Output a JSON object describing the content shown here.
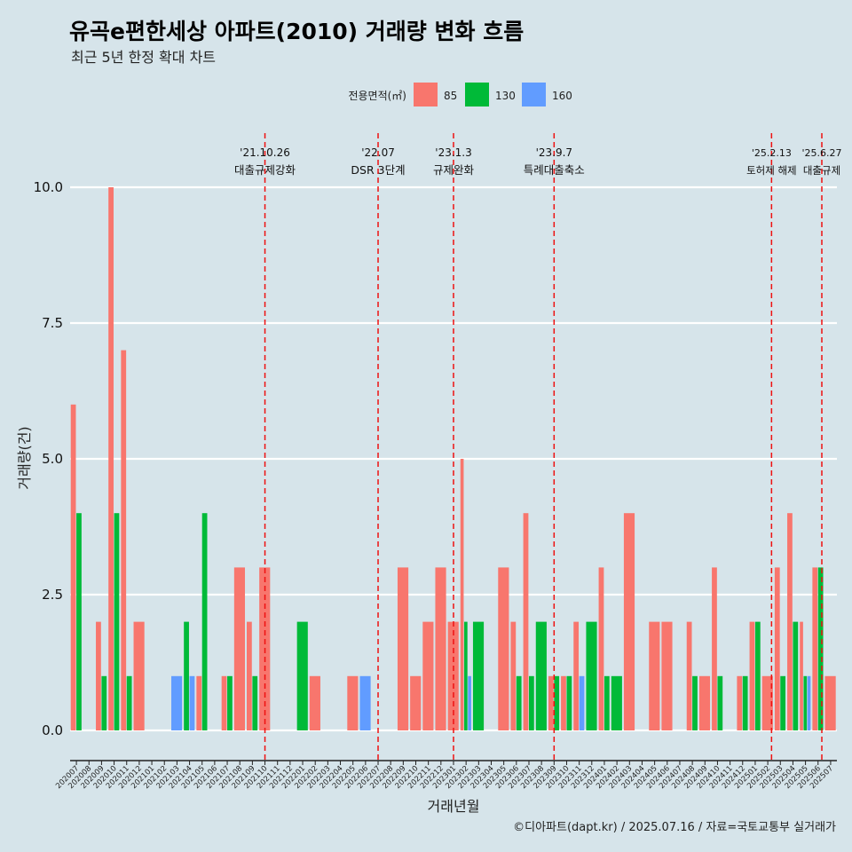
{
  "chart_data": {
    "type": "bar",
    "title": "유곡e편한세상 아파트(2010) 거래량 변화 흐름",
    "subtitle": "최근 5년 한정 확대 차트",
    "xlabel": "거래년월",
    "ylabel": "거래량(건)",
    "caption": "©디아파트(dapt.kr) / 2025.07.16 / 자료=국토교통부 실거래가",
    "legend": {
      "title": "전용면적(㎡)",
      "position": "top"
    },
    "ylim": [
      0,
      10.5
    ],
    "yticks": [
      "0.0",
      "2.5",
      "5.0",
      "7.5",
      "10.0"
    ],
    "ytick_values": [
      0,
      2.5,
      5,
      7.5,
      10
    ],
    "grid": true,
    "categories": [
      "202007",
      "202008",
      "202009",
      "202010",
      "202011",
      "202012",
      "202101",
      "202102",
      "202103",
      "202104",
      "202105",
      "202106",
      "202107",
      "202108",
      "202109",
      "202110",
      "202111",
      "202112",
      "202201",
      "202202",
      "202203",
      "202204",
      "202205",
      "202206",
      "202207",
      "202208",
      "202209",
      "202210",
      "202211",
      "202212",
      "202301",
      "202302",
      "202303",
      "202304",
      "202305",
      "202306",
      "202307",
      "202308",
      "202309",
      "202310",
      "202311",
      "202312",
      "202401",
      "202402",
      "202403",
      "202404",
      "202405",
      "202406",
      "202407",
      "202408",
      "202409",
      "202410",
      "202411",
      "202412",
      "202501",
      "202502",
      "202503",
      "202504",
      "202505",
      "202506",
      "202507"
    ],
    "series": [
      {
        "name": "85",
        "color": "#f8766d",
        "values": [
          6,
          0,
          2,
          10,
          7,
          2,
          0,
          0,
          0,
          0,
          1,
          0,
          1,
          3,
          2,
          3,
          0,
          0,
          0,
          1,
          0,
          0,
          1,
          0,
          0,
          0,
          3,
          1,
          2,
          3,
          2,
          5,
          0,
          0,
          3,
          2,
          4,
          0,
          1,
          1,
          2,
          0,
          3,
          0,
          4,
          0,
          2,
          2,
          0,
          2,
          1,
          3,
          0,
          1,
          2,
          1,
          3,
          4,
          2,
          3,
          1
        ]
      },
      {
        "name": "130",
        "color": "#00ba38",
        "values": [
          4,
          0,
          1,
          4,
          1,
          0,
          0,
          0,
          0,
          2,
          4,
          0,
          1,
          0,
          1,
          0,
          0,
          0,
          2,
          0,
          0,
          0,
          0,
          0,
          0,
          0,
          0,
          0,
          0,
          0,
          0,
          2,
          2,
          0,
          0,
          1,
          1,
          2,
          1,
          1,
          0,
          2,
          1,
          1,
          0,
          0,
          0,
          0,
          0,
          1,
          0,
          1,
          0,
          1,
          2,
          0,
          1,
          2,
          1,
          3,
          0
        ]
      },
      {
        "name": "160",
        "color": "#619cff",
        "values": [
          0,
          0,
          0,
          0,
          0,
          0,
          0,
          0,
          1,
          1,
          0,
          0,
          0,
          0,
          0,
          0,
          0,
          0,
          0,
          0,
          0,
          0,
          0,
          1,
          0,
          0,
          0,
          0,
          0,
          0,
          0,
          1,
          0,
          0,
          0,
          0,
          0,
          0,
          0,
          0,
          1,
          0,
          0,
          0,
          0,
          0,
          0,
          0,
          0,
          0,
          0,
          0,
          0,
          0,
          0,
          0,
          0,
          0,
          1,
          0,
          0
        ]
      }
    ],
    "annotations": [
      {
        "position": 15.0,
        "date": "'21.10.26",
        "label": "대출규제강화"
      },
      {
        "position": 24.0,
        "date": "'22.07",
        "label": "DSR 3단계"
      },
      {
        "position": 30.0,
        "date": "'23.1.3",
        "label": "규제완화"
      },
      {
        "position": 38.0,
        "date": "'23.9.7",
        "label": "특례대출축소"
      },
      {
        "position": 55.3,
        "date": "'25.2.13",
        "label": "토허제 해제"
      },
      {
        "position": 59.3,
        "date": "'25.6.27",
        "label": "대출규제"
      }
    ]
  }
}
